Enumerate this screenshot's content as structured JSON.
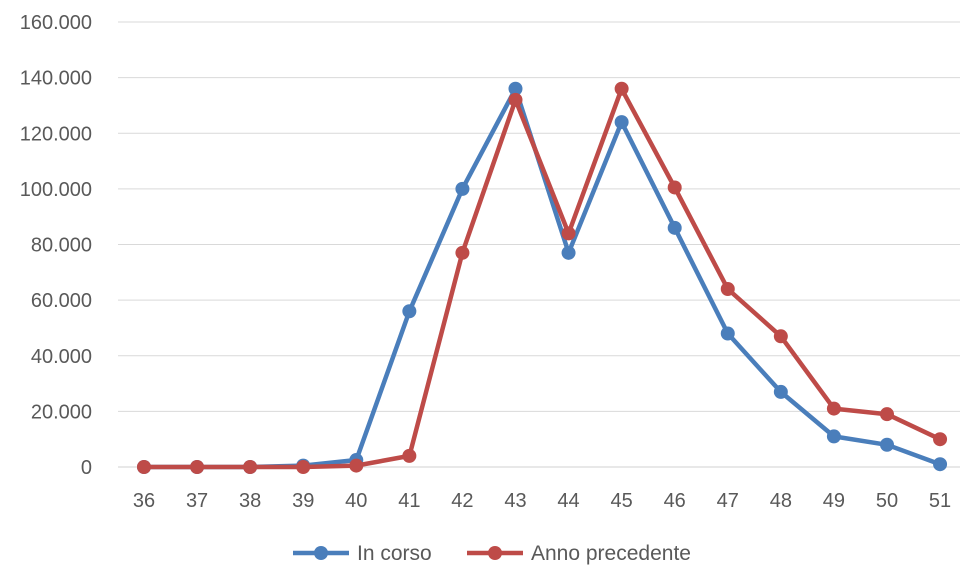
{
  "chart_data": {
    "type": "line",
    "title": "",
    "xlabel": "",
    "ylabel": "",
    "x": [
      "36",
      "37",
      "38",
      "39",
      "40",
      "41",
      "42",
      "43",
      "44",
      "45",
      "46",
      "47",
      "48",
      "49",
      "50",
      "51"
    ],
    "ylim": [
      0,
      160000
    ],
    "y_ticks": [
      0,
      20000,
      40000,
      60000,
      80000,
      100000,
      120000,
      140000,
      160000
    ],
    "y_tick_labels": [
      "0",
      "20.000",
      "40.000",
      "60.000",
      "80.000",
      "100.000",
      "120.000",
      "140.000",
      "160.000"
    ],
    "grid": true,
    "legend_position": "bottom",
    "series": [
      {
        "name": "In corso",
        "color": "#4a7ebb",
        "values": [
          0,
          0,
          0,
          500,
          2500,
          56000,
          100000,
          136000,
          77000,
          124000,
          86000,
          48000,
          27000,
          11000,
          8000,
          1000
        ]
      },
      {
        "name": "Anno precedente",
        "color": "#be4b48",
        "values": [
          0,
          0,
          0,
          0,
          500,
          4000,
          77000,
          132000,
          84000,
          136000,
          100500,
          64000,
          47000,
          21000,
          19000,
          10000
        ]
      }
    ]
  }
}
